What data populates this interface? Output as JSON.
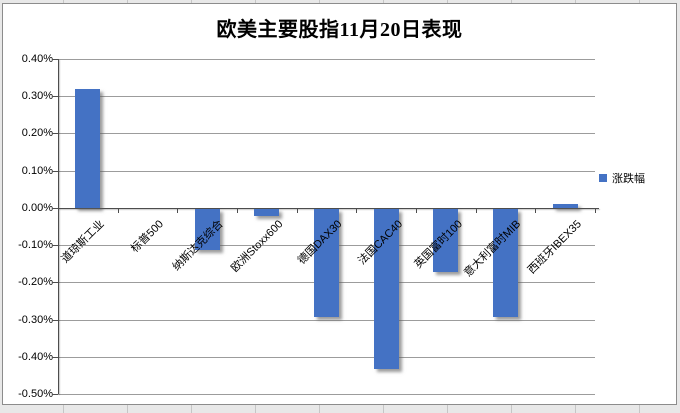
{
  "title": "欧美主要股指11月20日表现",
  "legend": {
    "label": "涨跌幅",
    "color": "#4472C4"
  },
  "chart_data": {
    "type": "bar",
    "title": "欧美主要股指11月20日表现",
    "categories": [
      "道琼斯工业",
      "标普500",
      "纳斯达克综合",
      "欧洲Stoxx600",
      "德国DAX30",
      "法国CAC40",
      "英国富时100",
      "意大利富时MIB",
      "西班牙IBEX35"
    ],
    "series": [
      {
        "name": "涨跌幅",
        "values": [
          0.32,
          0.0,
          -0.11,
          -0.02,
          -0.29,
          -0.43,
          -0.17,
          -0.29,
          0.01
        ]
      }
    ],
    "xlabel": "",
    "ylabel": "",
    "ylim": [
      -0.5,
      0.4
    ],
    "ytick_step": 0.1,
    "y_tick_labels": [
      "0.40%",
      "0.30%",
      "0.20%",
      "0.10%",
      "0.00%",
      "-0.10%",
      "-0.20%",
      "-0.30%",
      "-0.40%",
      "-0.50%"
    ],
    "grid": true,
    "legend_position": "right",
    "bar_color": "#4472C4",
    "unit": "percent"
  }
}
